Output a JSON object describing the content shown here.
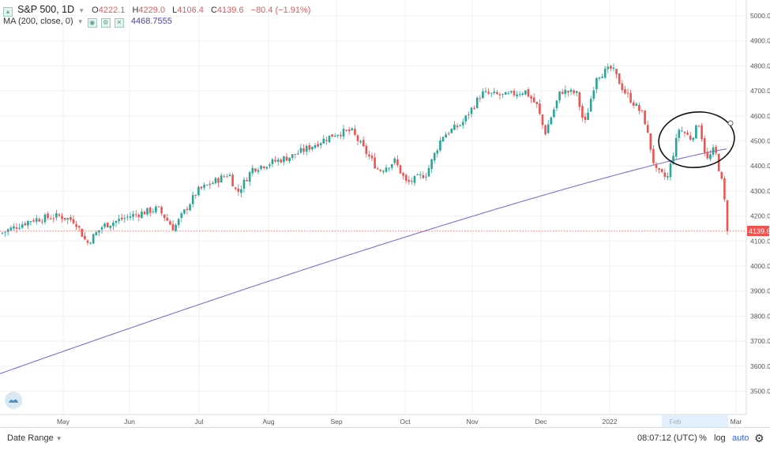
{
  "legend": {
    "symbol": "S&P 500",
    "timeframe": "1D",
    "open_label": "O",
    "open": "4222.1",
    "high_label": "H",
    "high": "4229.0",
    "low_label": "L",
    "low": "4106.4",
    "close_label": "C",
    "close": "4139.6",
    "change": "−80.4 (−1.91%)",
    "ma_label": "MA (200, close, 0)",
    "ma_value": "4468.7555"
  },
  "price_axis": {
    "ticks": [
      "5000.0",
      "4900.0",
      "4800.0",
      "4700.0",
      "4600.0",
      "4500.0",
      "4400.0",
      "4300.0",
      "4200.0",
      "4100.0",
      "4000.0",
      "3900.0",
      "3800.0",
      "3700.0",
      "3600.0",
      "3500.0"
    ],
    "last_price_label": "4139.6"
  },
  "time_axis": {
    "labels": [
      "May",
      "Jun",
      "Jul",
      "Aug",
      "Sep",
      "Oct",
      "Nov",
      "Dec",
      "2022",
      "Feb",
      "Mar"
    ]
  },
  "bottom_bar": {
    "date_range": "Date Range",
    "time": "08:07:12 (UTC)",
    "percent": "%",
    "log": "log",
    "auto": "auto"
  },
  "colors": {
    "up": "#26a69a",
    "down": "#ef5350",
    "ma": "#7b6fd8",
    "last_price": "#ef5350",
    "grid": "#eef0f3"
  },
  "chart_data": {
    "type": "candlestick",
    "series_name": "S&P 500",
    "y_range": [
      3450,
      5050
    ],
    "last_price": 4139.6,
    "ma_start": 3570,
    "ma_end": 4468.7555
  }
}
